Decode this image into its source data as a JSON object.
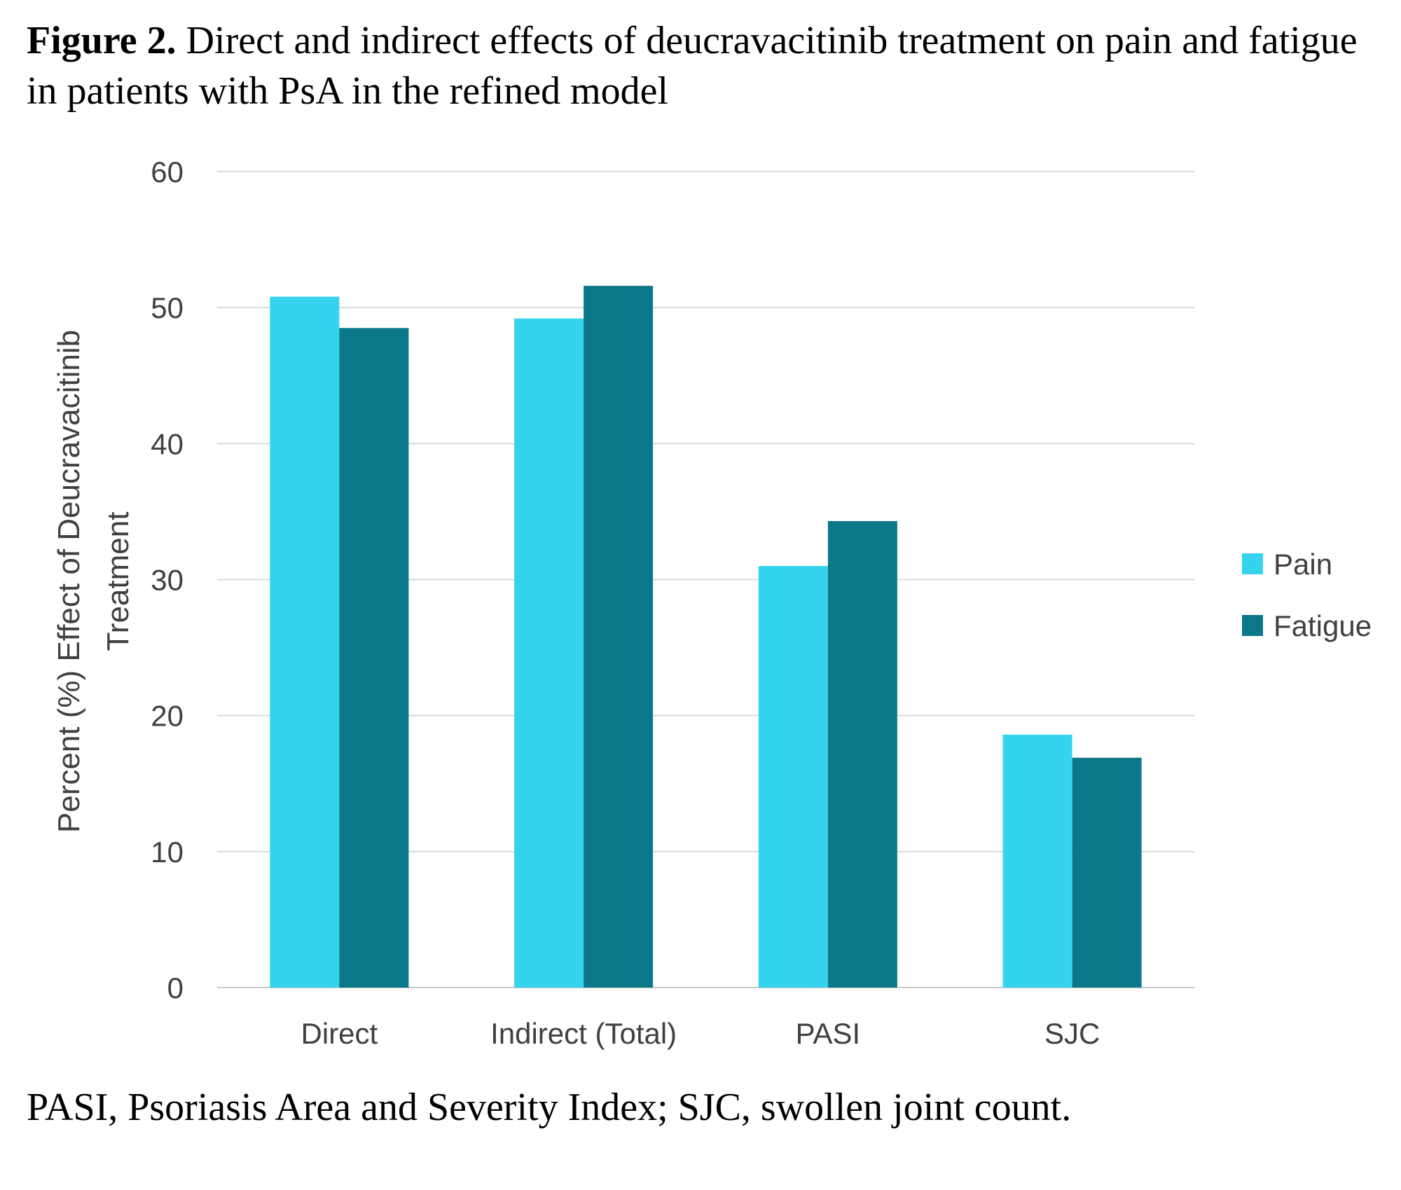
{
  "figure": {
    "label": "Figure 2.",
    "caption": "Direct and indirect effects of deucravacitinib treatment on pain and fatigue in patients with PsA in the refined model",
    "footnote": "PASI, Psoriasis Area and Severity Index; SJC, swollen joint count."
  },
  "chart_data": {
    "type": "bar",
    "categories": [
      "Direct",
      "Indirect (Total)",
      "PASI",
      "SJC"
    ],
    "series": [
      {
        "name": "Pain",
        "color": "#34d4ef",
        "values": [
          50.8,
          49.2,
          31.0,
          18.6
        ]
      },
      {
        "name": "Fatigue",
        "color": "#0b7889",
        "values": [
          48.5,
          51.6,
          34.3,
          16.9
        ]
      }
    ],
    "ylabel_line1": "Percent (%) Effect of Deucravacitinib",
    "ylabel_line2": "Treatment",
    "xlabel": "",
    "ylim": [
      0,
      60
    ],
    "yticks": [
      0,
      10,
      20,
      30,
      40,
      50,
      60
    ],
    "grid": true,
    "legend": "right"
  }
}
